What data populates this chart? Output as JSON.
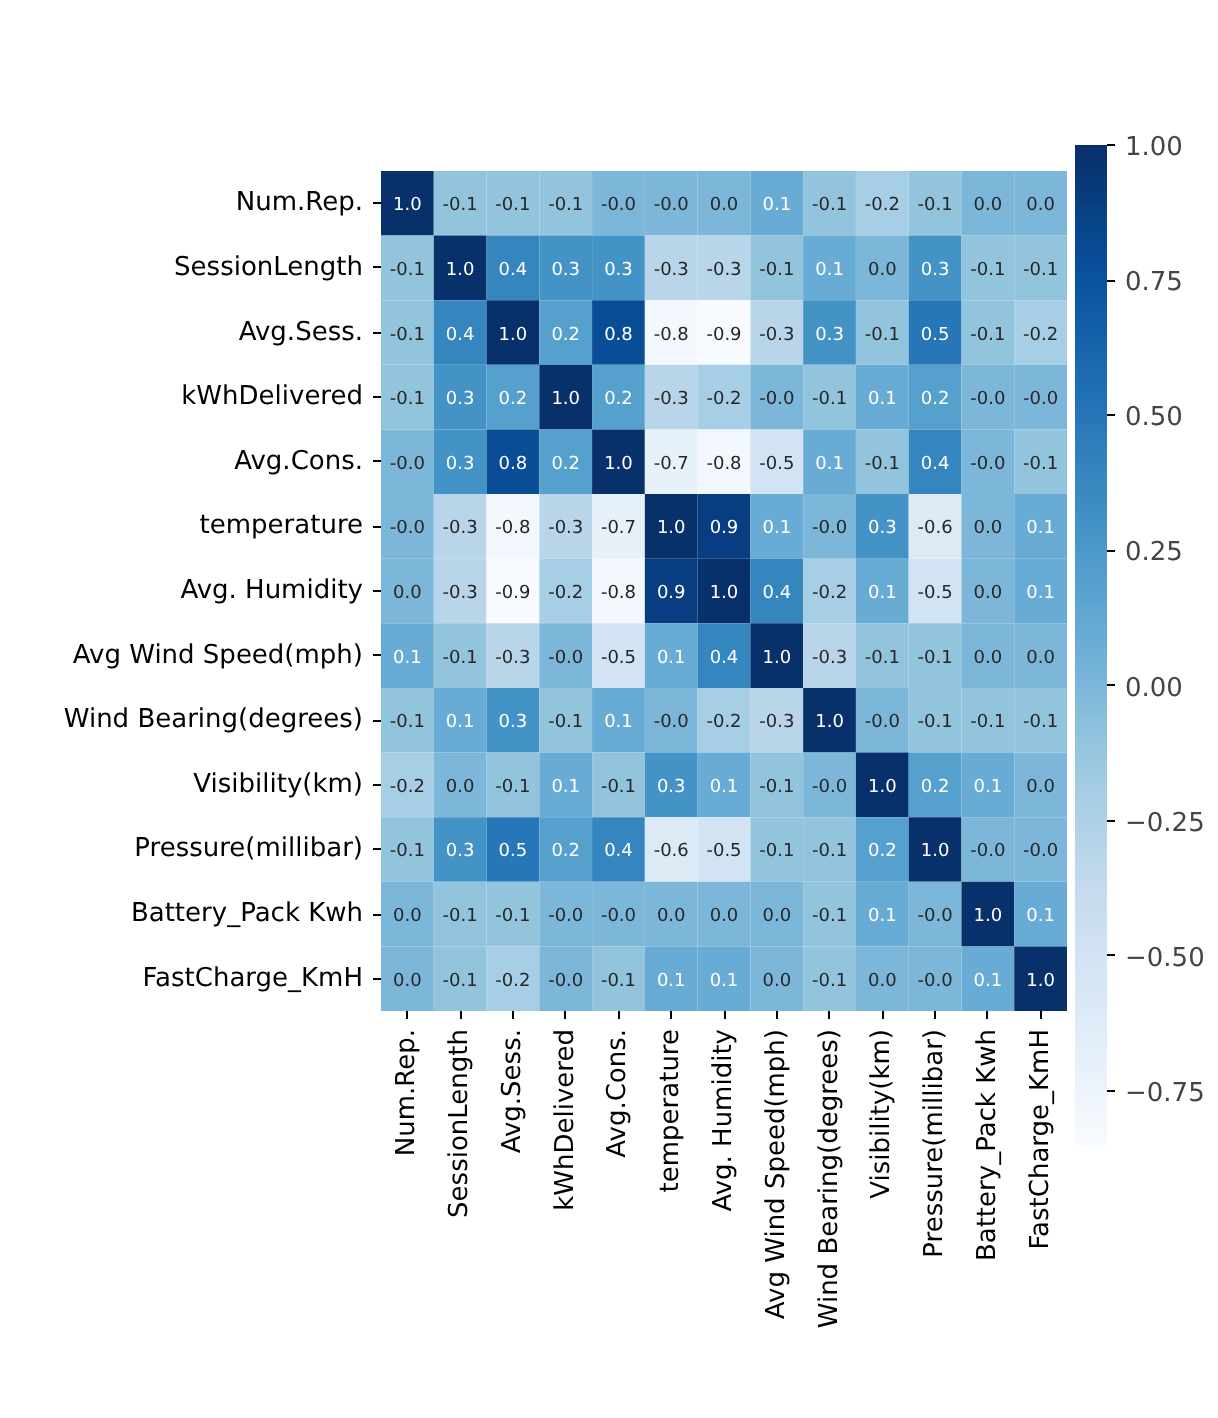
{
  "chart_data": {
    "type": "heatmap",
    "categories": [
      "Num.Rep.",
      "SessionLength",
      "Avg.Sess.",
      "kWhDelivered",
      "Avg.Cons.",
      "temperature",
      "Avg. Humidity",
      "Avg Wind Speed(mph)",
      "Wind Bearing(degrees)",
      "Visibility(km)",
      "Pressure(millibar)",
      "Battery_Pack Kwh",
      "FastCharge_KmH"
    ],
    "y_categories": [
      "Num.Rep.",
      "SessionLength",
      "Avg.Sess.",
      "kWhDelivered",
      "Avg.Cons.",
      "temperature",
      "Avg. Humidity",
      "Avg Wind Speed(mph)",
      "Wind Bearing(degrees)",
      "Visibility(km)",
      "Pressure(millibar)",
      "Battery_Pack Kwh",
      "FastCharge_KmH"
    ],
    "cells": [
      [
        1.0,
        -0.1,
        -0.1,
        -0.1,
        0.0,
        0.0,
        0.0,
        0.1,
        -0.1,
        -0.2,
        -0.1,
        0.0,
        0.0
      ],
      [
        -0.1,
        1.0,
        0.4,
        0.3,
        0.3,
        -0.3,
        -0.3,
        -0.1,
        0.1,
        0.0,
        0.3,
        -0.1,
        -0.1
      ],
      [
        -0.1,
        0.4,
        1.0,
        0.2,
        0.8,
        -0.8,
        -0.9,
        -0.3,
        0.3,
        -0.1,
        0.5,
        -0.1,
        -0.2
      ],
      [
        -0.1,
        0.3,
        0.2,
        1.0,
        0.2,
        -0.3,
        -0.2,
        0.0,
        -0.1,
        0.1,
        0.2,
        0.0,
        0.0
      ],
      [
        0.0,
        0.3,
        0.8,
        0.2,
        1.0,
        -0.7,
        -0.8,
        -0.5,
        0.1,
        -0.1,
        0.4,
        0.0,
        -0.1
      ],
      [
        0.0,
        -0.3,
        -0.8,
        -0.3,
        -0.7,
        1.0,
        0.9,
        0.1,
        0.0,
        0.3,
        -0.6,
        0.0,
        0.1
      ],
      [
        0.0,
        -0.3,
        -0.9,
        -0.2,
        -0.8,
        0.9,
        1.0,
        0.4,
        -0.2,
        0.1,
        -0.5,
        0.0,
        0.1
      ],
      [
        0.1,
        -0.1,
        -0.3,
        0.0,
        -0.5,
        0.1,
        0.4,
        1.0,
        -0.3,
        -0.1,
        -0.1,
        0.0,
        0.0
      ],
      [
        -0.1,
        0.1,
        0.3,
        -0.1,
        0.1,
        0.0,
        -0.2,
        -0.3,
        1.0,
        0.0,
        -0.1,
        -0.1,
        -0.1
      ],
      [
        -0.2,
        0.0,
        -0.1,
        0.1,
        -0.1,
        0.3,
        0.1,
        -0.1,
        0.0,
        1.0,
        0.2,
        0.1,
        0.0
      ],
      [
        -0.1,
        0.3,
        0.5,
        0.2,
        0.4,
        -0.6,
        -0.5,
        -0.1,
        -0.1,
        0.2,
        1.0,
        0.0,
        0.0
      ],
      [
        0.0,
        -0.1,
        -0.1,
        0.0,
        0.0,
        0.0,
        0.0,
        0.0,
        -0.1,
        0.1,
        0.0,
        1.0,
        0.1
      ],
      [
        0.0,
        -0.1,
        -0.2,
        0.0,
        -0.1,
        0.1,
        0.1,
        0.0,
        -0.1,
        0.0,
        0.0,
        0.1,
        1.0
      ]
    ],
    "cell_labels": [
      [
        "1.0",
        "-0.1",
        "-0.1",
        "-0.1",
        "-0.0",
        "-0.0",
        "0.0",
        "0.1",
        "-0.1",
        "-0.2",
        "-0.1",
        "0.0",
        "0.0"
      ],
      [
        "-0.1",
        "1.0",
        "0.4",
        "0.3",
        "0.3",
        "-0.3",
        "-0.3",
        "-0.1",
        "0.1",
        "0.0",
        "0.3",
        "-0.1",
        "-0.1"
      ],
      [
        "-0.1",
        "0.4",
        "1.0",
        "0.2",
        "0.8",
        "-0.8",
        "-0.9",
        "-0.3",
        "0.3",
        "-0.1",
        "0.5",
        "-0.1",
        "-0.2"
      ],
      [
        "-0.1",
        "0.3",
        "0.2",
        "1.0",
        "0.2",
        "-0.3",
        "-0.2",
        "-0.0",
        "-0.1",
        "0.1",
        "0.2",
        "-0.0",
        "-0.0"
      ],
      [
        "-0.0",
        "0.3",
        "0.8",
        "0.2",
        "1.0",
        "-0.7",
        "-0.8",
        "-0.5",
        "0.1",
        "-0.1",
        "0.4",
        "-0.0",
        "-0.1"
      ],
      [
        "-0.0",
        "-0.3",
        "-0.8",
        "-0.3",
        "-0.7",
        "1.0",
        "0.9",
        "0.1",
        "-0.0",
        "0.3",
        "-0.6",
        "0.0",
        "0.1"
      ],
      [
        "0.0",
        "-0.3",
        "-0.9",
        "-0.2",
        "-0.8",
        "0.9",
        "1.0",
        "0.4",
        "-0.2",
        "0.1",
        "-0.5",
        "0.0",
        "0.1"
      ],
      [
        "0.1",
        "-0.1",
        "-0.3",
        "-0.0",
        "-0.5",
        "0.1",
        "0.4",
        "1.0",
        "-0.3",
        "-0.1",
        "-0.1",
        "0.0",
        "0.0"
      ],
      [
        "-0.1",
        "0.1",
        "0.3",
        "-0.1",
        "0.1",
        "-0.0",
        "-0.2",
        "-0.3",
        "1.0",
        "-0.0",
        "-0.1",
        "-0.1",
        "-0.1"
      ],
      [
        "-0.2",
        "0.0",
        "-0.1",
        "0.1",
        "-0.1",
        "0.3",
        "0.1",
        "-0.1",
        "-0.0",
        "1.0",
        "0.2",
        "0.1",
        "0.0"
      ],
      [
        "-0.1",
        "0.3",
        "0.5",
        "0.2",
        "0.4",
        "-0.6",
        "-0.5",
        "-0.1",
        "-0.1",
        "0.2",
        "1.0",
        "-0.0",
        "-0.0"
      ],
      [
        "0.0",
        "-0.1",
        "-0.1",
        "-0.0",
        "-0.0",
        "0.0",
        "0.0",
        "0.0",
        "-0.1",
        "0.1",
        "-0.0",
        "1.0",
        "0.1"
      ],
      [
        "0.0",
        "-0.1",
        "-0.2",
        "-0.0",
        "-0.1",
        "0.1",
        "0.1",
        "0.0",
        "-0.1",
        "0.0",
        "-0.0",
        "0.1",
        "1.0"
      ]
    ],
    "clim": [
      -0.85,
      1.0
    ],
    "cticks": [
      {
        "value": -0.75,
        "label": "−0.75"
      },
      {
        "value": -0.5,
        "label": "−0.50"
      },
      {
        "value": -0.25,
        "label": "−0.25"
      },
      {
        "value": 0,
        "label": "0.00"
      },
      {
        "value": 0.25,
        "label": "0.25"
      },
      {
        "value": 0.5,
        "label": "0.50"
      },
      {
        "value": 0.75,
        "label": "0.75"
      },
      {
        "value": 1.0,
        "label": "1.00"
      }
    ]
  }
}
